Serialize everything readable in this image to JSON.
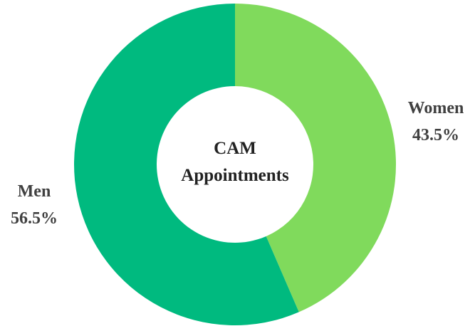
{
  "chart_data": {
    "type": "donut",
    "title": "CAM Appointments",
    "categories": [
      "Women",
      "Men"
    ],
    "values": [
      43.5,
      56.5
    ],
    "value_labels": [
      "43.5%",
      "56.5%"
    ],
    "colors": [
      "#80da5c",
      "#00ba7f"
    ]
  }
}
